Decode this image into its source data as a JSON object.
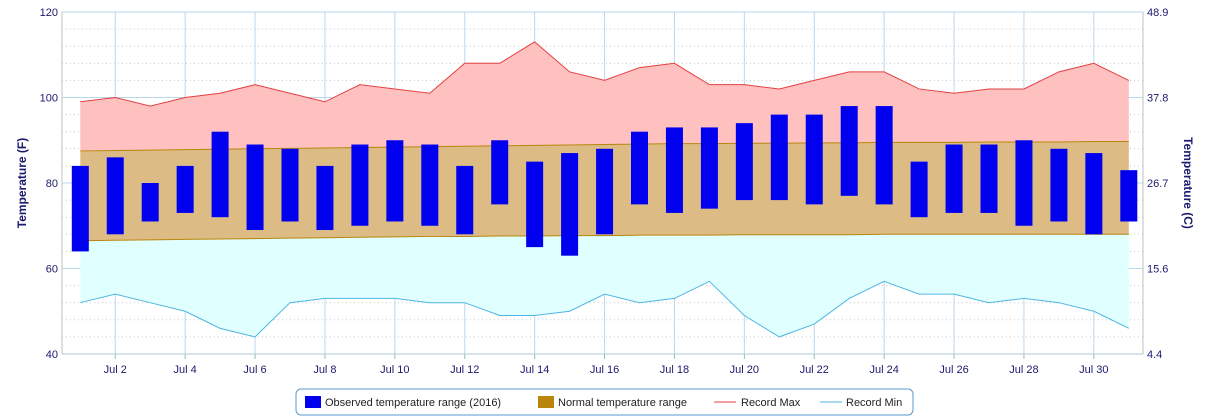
{
  "chart_data": {
    "type": "bar",
    "x": [
      1,
      2,
      3,
      4,
      5,
      6,
      7,
      8,
      9,
      10,
      11,
      12,
      13,
      14,
      15,
      16,
      17,
      18,
      19,
      20,
      21,
      22,
      23,
      24,
      25,
      26,
      27,
      28,
      29,
      30,
      31
    ],
    "x_tick_labels": [
      "Jul 2",
      "Jul 4",
      "Jul 6",
      "Jul 8",
      "Jul 10",
      "Jul 12",
      "Jul 14",
      "Jul 16",
      "Jul 18",
      "Jul 20",
      "Jul 22",
      "Jul 24",
      "Jul 26",
      "Jul 28",
      "Jul 30"
    ],
    "x_tick_days": [
      2,
      4,
      6,
      8,
      10,
      12,
      14,
      16,
      18,
      20,
      22,
      24,
      26,
      28,
      30
    ],
    "ylabel": "Temperature (F)",
    "y2label": "Temperature (C)",
    "ylim": [
      40,
      120
    ],
    "y_ticks": [
      "40",
      "60",
      "80",
      "100",
      "120"
    ],
    "y2_ticks": [
      "4.4",
      "15.6",
      "26.7",
      "37.8",
      "48.9"
    ],
    "grid": true,
    "legend_position": "bottom-center",
    "colors": {
      "observed": "#0000ee",
      "normal": "#b8860b",
      "record_max": "#e34040",
      "record_min": "#4fb6e3",
      "record_max_fill": "#ffc0c0",
      "record_min_fill": "#e0ffff",
      "normal_fill": "#dcbc84",
      "grid": "#b8d8ee",
      "axis_text": "#1a1a6e"
    },
    "series": [
      {
        "name": "Observed temperature range (2016)",
        "type": "range-bar",
        "low": [
          64,
          68,
          71,
          73,
          72,
          69,
          71,
          69,
          70,
          71,
          70,
          68,
          75,
          65,
          63,
          68,
          75,
          73,
          74,
          76,
          76,
          75,
          77,
          75,
          72,
          73,
          73,
          70,
          71,
          68,
          71
        ],
        "high": [
          84,
          86,
          80,
          84,
          92,
          89,
          88,
          84,
          89,
          90,
          89,
          84,
          90,
          85,
          87,
          88,
          92,
          93,
          93,
          94,
          96,
          96,
          98,
          98,
          85,
          89,
          89,
          90,
          88,
          87,
          83
        ]
      },
      {
        "name": "Normal temperature range",
        "type": "area-range",
        "low": [
          66.5,
          66.6,
          66.7,
          66.8,
          66.9,
          67.0,
          67.1,
          67.2,
          67.3,
          67.4,
          67.5,
          67.5,
          67.6,
          67.6,
          67.7,
          67.7,
          67.8,
          67.8,
          67.8,
          67.9,
          67.9,
          67.9,
          67.9,
          68.0,
          68.0,
          68.0,
          68.0,
          68.0,
          68.0,
          68.0,
          68.0
        ],
        "high": [
          87.5,
          87.6,
          87.7,
          87.8,
          87.9,
          88.0,
          88.1,
          88.2,
          88.3,
          88.4,
          88.5,
          88.6,
          88.7,
          88.8,
          88.9,
          89.0,
          89.1,
          89.2,
          89.2,
          89.3,
          89.3,
          89.4,
          89.4,
          89.5,
          89.5,
          89.5,
          89.6,
          89.6,
          89.6,
          89.7,
          89.7
        ]
      },
      {
        "name": "Record Max",
        "type": "line",
        "values": [
          99,
          100,
          98,
          100,
          101,
          103,
          101,
          99,
          103,
          102,
          101,
          108,
          108,
          113,
          106,
          104,
          107,
          108,
          103,
          103,
          102,
          104,
          106,
          106,
          102,
          101,
          102,
          102,
          106,
          108,
          104
        ]
      },
      {
        "name": "Record Min",
        "type": "line",
        "values": [
          52,
          54,
          52,
          50,
          46,
          44,
          52,
          53,
          53,
          53,
          52,
          52,
          49,
          49,
          50,
          54,
          52,
          53,
          57,
          49,
          44,
          47,
          53,
          57,
          54,
          54,
          52,
          53,
          52,
          50,
          46
        ]
      }
    ]
  }
}
